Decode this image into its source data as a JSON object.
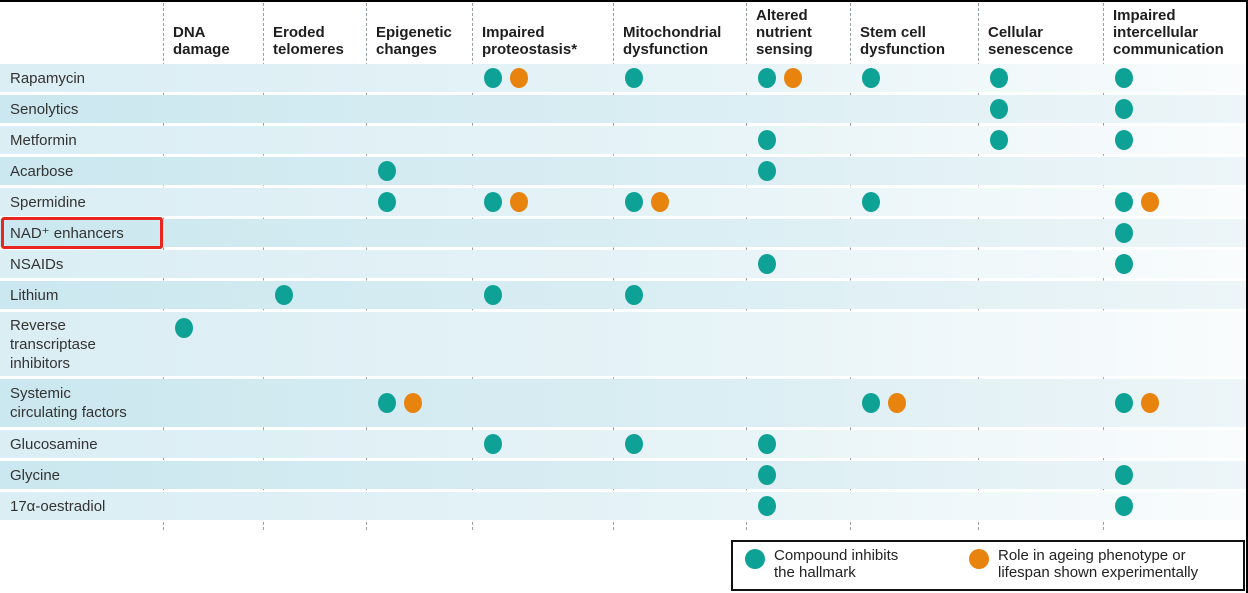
{
  "colors": {
    "inhibit_dot": "#0ea296",
    "experimental_dot": "#e8830e",
    "highlight_box": "#e8251f",
    "divider": "#98a0a4",
    "row_odd": "#daeef4",
    "row_even": "#cbe7ef"
  },
  "chart_data": {
    "type": "table",
    "description": "Matrix of compounds versus hallmarks of ageing; teal dot = compound inhibits the hallmark, orange dot = role in ageing phenotype or lifespan shown experimentally",
    "columns": [
      "DNA damage",
      "Eroded telomeres",
      "Epigenetic changes",
      "Impaired proteostasis*",
      "Mitochondrial dysfunction",
      "Altered nutrient sensing",
      "Stem cell dysfunction",
      "Cellular senescence",
      "Impaired intercellular communication"
    ],
    "column_display": [
      "DNA\ndamage",
      "Eroded\ntelomeres",
      "Epigenetic\nchanges",
      "Impaired\nproteostasis*",
      "Mitochondrial\ndysfunction",
      "Altered\nnutrient\nsensing",
      "Stem cell\ndysfunction",
      "Cellular\nsenescence",
      "Impaired\nintercellular\ncommunication"
    ],
    "mark_key": {
      "i": "Compound inhibits the hallmark",
      "e": "Role in ageing phenotype or lifespan shown experimentally"
    },
    "rows": [
      {
        "label": "Rapamycin",
        "display": "Rapamycin",
        "lines": 1,
        "highlighted": false,
        "marks": [
          "",
          "",
          "",
          "ie",
          "i",
          "ie",
          "i",
          "i",
          "i"
        ]
      },
      {
        "label": "Senolytics",
        "display": "Senolytics",
        "lines": 1,
        "highlighted": false,
        "marks": [
          "",
          "",
          "",
          "",
          "",
          "",
          "",
          "i",
          "i"
        ]
      },
      {
        "label": "Metformin",
        "display": "Metformin",
        "lines": 1,
        "highlighted": false,
        "marks": [
          "",
          "",
          "",
          "",
          "",
          "i",
          "",
          "i",
          "i"
        ]
      },
      {
        "label": "Acarbose",
        "display": "Acarbose",
        "lines": 1,
        "highlighted": false,
        "marks": [
          "",
          "",
          "i",
          "",
          "",
          "i",
          "",
          "",
          ""
        ]
      },
      {
        "label": "Spermidine",
        "display": "Spermidine",
        "lines": 1,
        "highlighted": false,
        "marks": [
          "",
          "",
          "i",
          "ie",
          "ie",
          "",
          "i",
          "",
          "ie"
        ]
      },
      {
        "label": "NAD⁺ enhancers",
        "display": "NAD⁺ enhancers",
        "lines": 1,
        "highlighted": true,
        "marks": [
          "",
          "",
          "",
          "",
          "",
          "",
          "",
          "",
          "i"
        ]
      },
      {
        "label": "NSAIDs",
        "display": "NSAIDs",
        "lines": 1,
        "highlighted": false,
        "marks": [
          "",
          "",
          "",
          "",
          "",
          "i",
          "",
          "",
          "i"
        ]
      },
      {
        "label": "Lithium",
        "display": "Lithium",
        "lines": 1,
        "highlighted": false,
        "marks": [
          "",
          "i",
          "",
          "i",
          "i",
          "",
          "",
          "",
          ""
        ]
      },
      {
        "label": "Reverse transcriptase inhibitors",
        "display": "Reverse\ntranscriptase\ninhibitors",
        "lines": 3,
        "highlighted": false,
        "marks": [
          "i",
          "",
          "",
          "",
          "",
          "",
          "",
          "",
          ""
        ]
      },
      {
        "label": "Systemic circulating factors",
        "display": "Systemic\ncirculating factors",
        "lines": 2,
        "highlighted": false,
        "marks": [
          "",
          "",
          "ie",
          "",
          "",
          "",
          "ie",
          "",
          "ie"
        ]
      },
      {
        "label": "Glucosamine",
        "display": "Glucosamine",
        "lines": 1,
        "highlighted": false,
        "marks": [
          "",
          "",
          "",
          "i",
          "i",
          "i",
          "",
          "",
          ""
        ]
      },
      {
        "label": "Glycine",
        "display": "Glycine",
        "lines": 1,
        "highlighted": false,
        "marks": [
          "",
          "",
          "",
          "",
          "",
          "i",
          "",
          "",
          "i"
        ]
      },
      {
        "label": "17α-oestradiol",
        "display": "17α-oestradiol",
        "lines": 1,
        "highlighted": false,
        "marks": [
          "",
          "",
          "",
          "",
          "",
          "i",
          "",
          "",
          "i"
        ]
      }
    ],
    "legend": [
      {
        "symbol": "teal-dot",
        "color": "#0ea296",
        "label": "Compound inhibits\nthe hallmark"
      },
      {
        "symbol": "orange-dot",
        "color": "#e8830e",
        "label": "Role in ageing phenotype or\nlifespan shown experimentally"
      }
    ]
  }
}
